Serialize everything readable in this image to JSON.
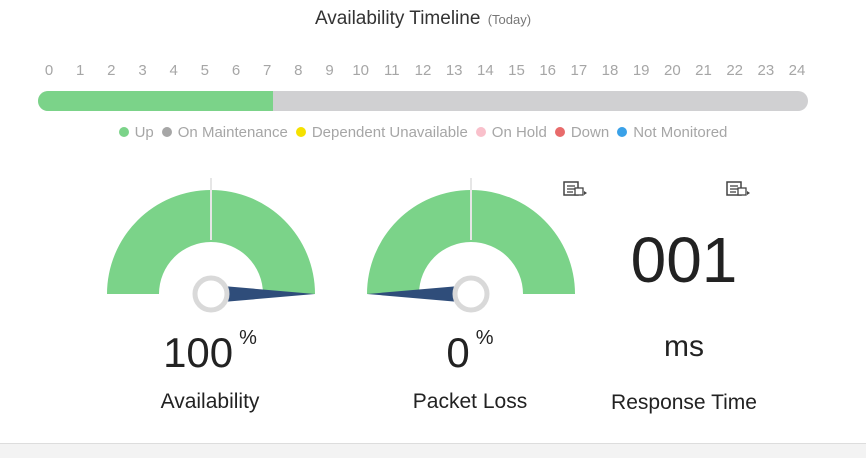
{
  "timeline": {
    "title": "Availability Timeline",
    "subtitle": "(Today)",
    "hours": [
      "0",
      "1",
      "2",
      "3",
      "4",
      "5",
      "6",
      "7",
      "8",
      "9",
      "10",
      "11",
      "12",
      "13",
      "14",
      "15",
      "16",
      "17",
      "18",
      "19",
      "20",
      "21",
      "22",
      "23",
      "24"
    ],
    "up_fraction": 0.305,
    "up_color": "#7bd389",
    "rest_color": "#d0d0d2"
  },
  "legend": [
    {
      "label": "Up",
      "color": "#7bd389"
    },
    {
      "label": "On Maintenance",
      "color": "#a6a6a6"
    },
    {
      "label": "Dependent Unavailable",
      "color": "#f5e100"
    },
    {
      "label": "On Hold",
      "color": "#f9c0cb"
    },
    {
      "label": "Down",
      "color": "#e86b6b"
    },
    {
      "label": "Not Monitored",
      "color": "#3aa1e8"
    }
  ],
  "availability": {
    "value": "100",
    "unit": "%",
    "label": "Availability",
    "percent": 100
  },
  "packet_loss": {
    "value": "0",
    "unit": "%",
    "label": "Packet Loss",
    "percent": 0
  },
  "response_time": {
    "value": "001",
    "unit": "ms",
    "label": "Response Time"
  },
  "icons": {
    "report": "report-icon"
  },
  "colors": {
    "gauge": "#7bd389",
    "needle": "#2f4d7a",
    "hub": "#d9d9d9"
  }
}
